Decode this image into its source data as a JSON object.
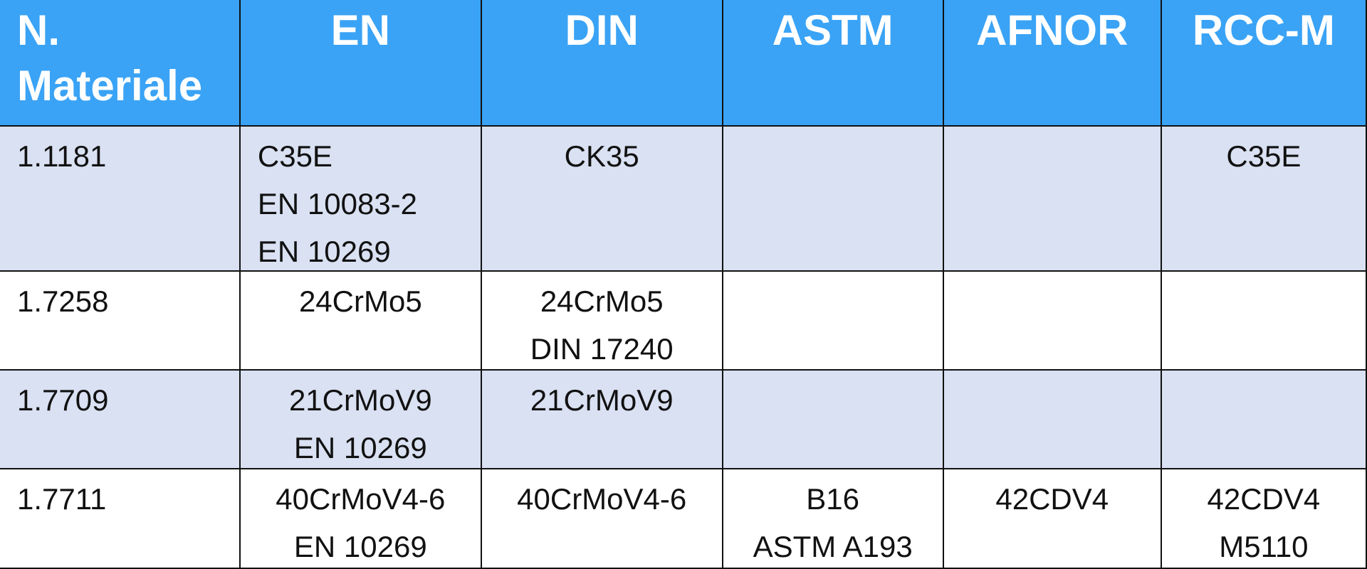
{
  "table": {
    "header": [
      "N. Materiale",
      "EN",
      "DIN",
      "ASTM",
      "AFNOR",
      "RCC-M"
    ],
    "rows": [
      [
        [
          "1.1181"
        ],
        [
          "C35E",
          "EN 10083-2",
          "EN 10269"
        ],
        [
          "CK35"
        ],
        [],
        [],
        [
          "C35E"
        ]
      ],
      [
        [
          "1.7258"
        ],
        [
          "24CrMo5"
        ],
        [
          "24CrMo5",
          "DIN 17240"
        ],
        [],
        [],
        []
      ],
      [
        [
          "1.7709"
        ],
        [
          "21CrMoV9",
          "EN 10269"
        ],
        [
          "21CrMoV9"
        ],
        [],
        [],
        []
      ],
      [
        [
          "1.7711"
        ],
        [
          "40CrMoV4-6",
          "EN 10269"
        ],
        [
          "40CrMoV4-6"
        ],
        [
          "B16",
          "ASTM A193"
        ],
        [
          "42CDV4"
        ],
        [
          "42CDV4",
          "M5110"
        ]
      ]
    ]
  }
}
